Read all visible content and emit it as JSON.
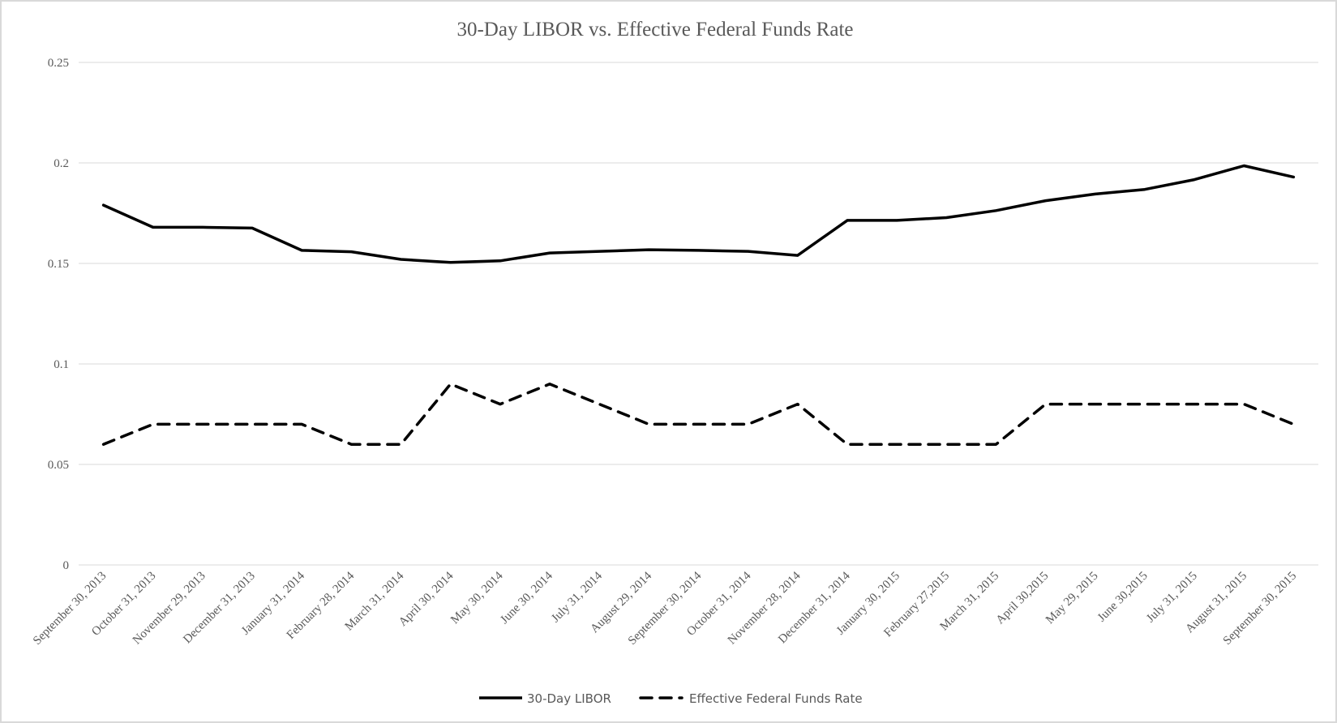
{
  "chart_data": {
    "type": "line",
    "title": "30-Day LIBOR vs. Effective Federal Funds Rate",
    "xlabel": "",
    "ylabel": "",
    "ylim": [
      0,
      0.25
    ],
    "yticks": [
      0,
      0.05,
      0.1,
      0.15,
      0.2,
      0.25
    ],
    "ytick_labels": [
      "0",
      "0.05",
      "0.1",
      "0.15",
      "0.2",
      "0.25"
    ],
    "grid": true,
    "legend_position": "bottom",
    "categories": [
      "September 30, 2013",
      "October 31, 2013",
      "November 29, 2013",
      "December 31, 2013",
      "January 31, 2014",
      "February 28, 2014",
      "March 31, 2014",
      "April 30, 2014",
      "May 30, 2014",
      "June 30, 2014",
      "July 31, 2014",
      "August 29, 2014",
      "September 30, 2014",
      "October 31, 2014",
      "November 28, 2014",
      "December 31, 2014",
      "January 30, 2015",
      "February 27,2015",
      "March 31, 2015",
      "April 30,2015",
      "May 29, 2015",
      "June 30,2015",
      "July 31, 2015",
      "August 31, 2015",
      "September 30, 2015"
    ],
    "series": [
      {
        "name": "30-Day LIBOR",
        "style": "solid",
        "color": "#000000",
        "values": [
          0.179,
          0.168,
          0.168,
          0.1676,
          0.1565,
          0.1558,
          0.152,
          0.1505,
          0.1513,
          0.1552,
          0.156,
          0.1568,
          0.1565,
          0.156,
          0.154,
          0.1714,
          0.1714,
          0.1728,
          0.1763,
          0.1812,
          0.1845,
          0.1868,
          0.1917,
          0.1986,
          0.193
        ]
      },
      {
        "name": "Effective Federal Funds Rate",
        "style": "dashed",
        "color": "#000000",
        "values": [
          0.06,
          0.07,
          0.07,
          0.07,
          0.07,
          0.06,
          0.06,
          0.09,
          0.08,
          0.09,
          0.08,
          0.07,
          0.07,
          0.07,
          0.08,
          0.06,
          0.06,
          0.06,
          0.06,
          0.08,
          0.08,
          0.08,
          0.08,
          0.08,
          0.07
        ]
      }
    ]
  }
}
